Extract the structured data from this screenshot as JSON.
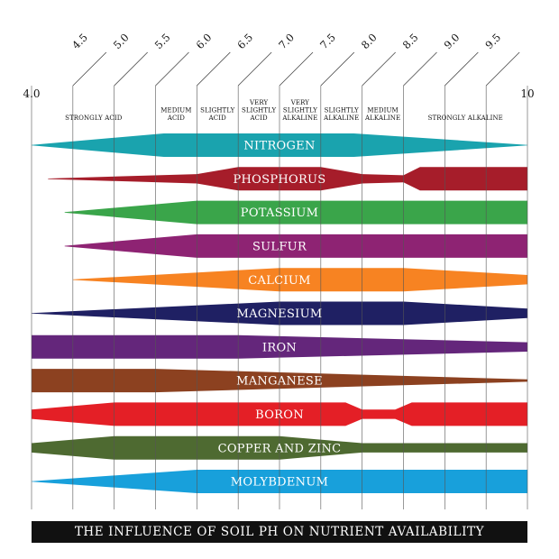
{
  "chart_data": {
    "type": "area",
    "title": "THE INFLUENCE OF SOIL PH ON NUTRIENT AVAILABILITY",
    "xlim": [
      4.0,
      10.0
    ],
    "x_end_labels": [
      "4.0",
      "10"
    ],
    "tick_values": [
      4.5,
      5.0,
      5.5,
      6.0,
      6.5,
      7.0,
      7.5,
      8.0,
      8.5,
      9.0,
      9.5
    ],
    "tick_labels": [
      "4.5",
      "5.0",
      "5.5",
      "6.0",
      "6.5",
      "7.0",
      "7.5",
      "8.0",
      "8.5",
      "9.0",
      "9.5"
    ],
    "zones": [
      {
        "lines": [
          "STRONGLY ACID"
        ],
        "from": 4.0,
        "to": 5.5
      },
      {
        "lines": [
          "MEDIUM",
          "ACID"
        ],
        "from": 5.5,
        "to": 6.0
      },
      {
        "lines": [
          "SLIGHTLY",
          "ACID"
        ],
        "from": 6.0,
        "to": 6.5
      },
      {
        "lines": [
          "VERY",
          "SLIGHTLY",
          "ACID"
        ],
        "from": 6.5,
        "to": 7.0
      },
      {
        "lines": [
          "VERY",
          "SLIGHTLY",
          "ALKALINE"
        ],
        "from": 7.0,
        "to": 7.5
      },
      {
        "lines": [
          "SLIGHTLY",
          "ALKALINE"
        ],
        "from": 7.5,
        "to": 8.0
      },
      {
        "lines": [
          "MEDIUM",
          "ALKALINE"
        ],
        "from": 8.0,
        "to": 8.5
      },
      {
        "lines": [
          "STRONGLY ALKALINE"
        ],
        "from": 8.5,
        "to": 10.0
      }
    ],
    "availability_scale": "relative band thickness, 1 = maximum availability",
    "series": [
      {
        "name": "NITROGEN",
        "color": "#1aa3ae",
        "points": [
          [
            4.0,
            0.02
          ],
          [
            5.6,
            1
          ],
          [
            7.9,
            1
          ],
          [
            10.0,
            0.02
          ]
        ]
      },
      {
        "name": "PHOSPHORUS",
        "color": "#a61d2a",
        "points": [
          [
            4.2,
            0.02
          ],
          [
            6.0,
            0.4
          ],
          [
            6.5,
            1
          ],
          [
            7.5,
            1
          ],
          [
            8.0,
            0.4
          ],
          [
            8.5,
            0.3
          ],
          [
            8.7,
            1
          ],
          [
            10.0,
            1
          ]
        ]
      },
      {
        "name": "POTASSIUM",
        "color": "#3aa54a",
        "points": [
          [
            4.4,
            0.02
          ],
          [
            6.0,
            1
          ],
          [
            10.0,
            1
          ]
        ]
      },
      {
        "name": "SULFUR",
        "color": "#8e2373",
        "points": [
          [
            4.4,
            0.02
          ],
          [
            6.0,
            1
          ],
          [
            10.0,
            1
          ]
        ]
      },
      {
        "name": "CALCIUM",
        "color": "#f78322",
        "points": [
          [
            4.5,
            0.02
          ],
          [
            7.0,
            1
          ],
          [
            8.5,
            1
          ],
          [
            10.0,
            0.4
          ]
        ]
      },
      {
        "name": "MAGNESIUM",
        "color": "#1f2063",
        "points": [
          [
            4.0,
            0.02
          ],
          [
            7.0,
            1
          ],
          [
            8.5,
            1
          ],
          [
            10.0,
            0.4
          ]
        ]
      },
      {
        "name": "IRON",
        "color": "#64267b",
        "points": [
          [
            4.0,
            1
          ],
          [
            6.5,
            1
          ],
          [
            10.0,
            0.4
          ]
        ]
      },
      {
        "name": "MANGANESE",
        "color": "#8c4120",
        "points": [
          [
            4.0,
            1
          ],
          [
            5.5,
            1
          ],
          [
            10.0,
            0.1
          ]
        ]
      },
      {
        "name": "BORON",
        "color": "#e41f26",
        "points": [
          [
            4.0,
            0.4
          ],
          [
            5.0,
            1
          ],
          [
            7.8,
            1
          ],
          [
            8.0,
            0.4
          ],
          [
            8.4,
            0.4
          ],
          [
            8.6,
            1
          ],
          [
            10.0,
            1
          ]
        ]
      },
      {
        "name": "COPPER AND ZINC",
        "color": "#4e6a31",
        "points": [
          [
            4.0,
            0.4
          ],
          [
            5.0,
            1
          ],
          [
            7.0,
            1
          ],
          [
            8.0,
            0.4
          ],
          [
            10.0,
            0.4
          ]
        ]
      },
      {
        "name": "MOLYBDENUM",
        "color": "#18a0db",
        "points": [
          [
            4.0,
            0.02
          ],
          [
            6.0,
            1
          ],
          [
            10.0,
            1
          ]
        ]
      }
    ],
    "grid": true
  }
}
